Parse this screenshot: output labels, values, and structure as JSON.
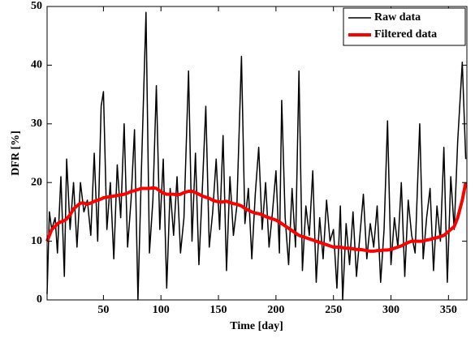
{
  "chart_data": {
    "type": "line",
    "xlabel": "Time [day]",
    "ylabel": "DFR [%]",
    "x": [
      1,
      3,
      5,
      8,
      10,
      13,
      16,
      18,
      21,
      24,
      27,
      30,
      33,
      36,
      39,
      42,
      45,
      48,
      50,
      53,
      56,
      59,
      62,
      65,
      68,
      71,
      74,
      77,
      80,
      83,
      87,
      90,
      93,
      96,
      99,
      102,
      105,
      108,
      111,
      114,
      117,
      120,
      124,
      127,
      130,
      133,
      136,
      139,
      142,
      145,
      148,
      151,
      154,
      157,
      160,
      163,
      166,
      170,
      173,
      176,
      179,
      182,
      185,
      188,
      191,
      194,
      197,
      200,
      203,
      205,
      208,
      211,
      214,
      217,
      220,
      223,
      226,
      229,
      232,
      235,
      238,
      241,
      244,
      247,
      250,
      253,
      256,
      258,
      261,
      264,
      267,
      270,
      273,
      276,
      279,
      282,
      285,
      288,
      291,
      294,
      297,
      300,
      303,
      306,
      309,
      312,
      315,
      318,
      321,
      325,
      328,
      331,
      334,
      337,
      340,
      343,
      346,
      349,
      352,
      355,
      358,
      362,
      365
    ],
    "series": [
      {
        "name": "Raw data",
        "color": "#000000",
        "values": [
          1,
          15,
          12,
          14,
          8,
          21,
          4,
          24,
          12,
          20,
          9,
          20,
          15,
          17,
          11,
          25,
          10,
          33,
          35.5,
          12,
          20,
          7,
          23,
          14,
          30,
          9,
          17,
          29,
          0,
          22,
          49,
          8,
          17,
          36.5,
          12,
          24,
          2,
          19,
          11,
          21,
          8,
          14,
          39,
          10,
          25,
          6,
          19,
          33,
          9,
          15,
          24,
          12,
          28,
          5,
          21,
          11,
          16,
          41.5,
          13,
          19,
          7,
          18,
          26,
          12,
          20,
          9,
          15,
          22,
          8,
          34,
          14,
          6,
          19,
          9,
          39,
          5,
          16,
          11,
          22,
          3,
          14,
          7,
          17,
          10,
          12,
          2,
          16,
          0,
          13,
          6,
          15,
          4,
          11,
          18,
          7,
          13,
          9,
          16,
          3,
          12,
          30.5,
          6,
          14,
          9,
          20,
          4,
          17,
          11,
          8,
          30,
          7,
          14,
          19,
          5,
          16,
          10,
          26,
          3,
          21,
          12,
          27,
          40.5,
          24
        ]
      },
      {
        "name": "Filtered data",
        "color": "#ff0000",
        "values": [
          10,
          11,
          12,
          12.5,
          13,
          13.3,
          13.5,
          13.8,
          14.5,
          15.5,
          16,
          16.5,
          16.5,
          16.3,
          16.5,
          16.8,
          17,
          17.2,
          17.4,
          17.5,
          17.6,
          17.7,
          17.8,
          17.9,
          18,
          18.2,
          18.5,
          18.6,
          18.8,
          19,
          19,
          19,
          19.1,
          19,
          18.6,
          18.2,
          18,
          18,
          18,
          17.9,
          18,
          18.3,
          18.5,
          18.5,
          18.3,
          18,
          17.7,
          17.5,
          17.3,
          17,
          16.8,
          16.7,
          16.7,
          16.8,
          16.6,
          16.4,
          16.3,
          16,
          15.6,
          15.3,
          15,
          14.8,
          14.7,
          14.5,
          14.2,
          14,
          13.8,
          13.6,
          13.3,
          13,
          12.6,
          12.2,
          11.8,
          11.4,
          11,
          10.8,
          10.6,
          10.4,
          10.2,
          10,
          9.8,
          9.6,
          9.4,
          9.2,
          9,
          9,
          9,
          8.9,
          8.8,
          8.8,
          8.7,
          8.6,
          8.6,
          8.5,
          8.4,
          8.3,
          8.3,
          8.4,
          8.4,
          8.5,
          8.5,
          8.6,
          8.8,
          9,
          9.2,
          9.5,
          9.8,
          10,
          10,
          10,
          10,
          10.2,
          10.3,
          10.5,
          10.6,
          10.8,
          11,
          11.5,
          12,
          12.5,
          14,
          17,
          20
        ]
      }
    ],
    "xlim": [
      1,
      366
    ],
    "ylim": [
      0,
      50
    ],
    "xticks": [
      50,
      100,
      150,
      200,
      250,
      300,
      350
    ],
    "yticks": [
      0,
      10,
      20,
      30,
      40,
      50
    ],
    "legend": "upper right"
  }
}
